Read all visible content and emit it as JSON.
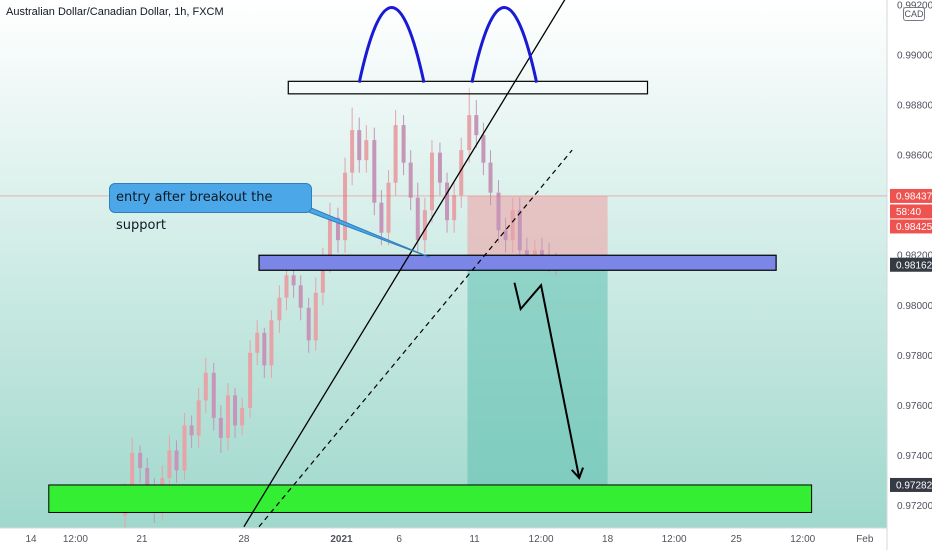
{
  "header": {
    "title": "Australian Dollar/Canadian Dollar, 1h, FXCM",
    "currency": "CAD"
  },
  "annotation": {
    "callout_text": "entry after breakout the support"
  },
  "colors": {
    "background_top": "#ffffff",
    "background_bottom": "#9fd8cc",
    "bull_candle": "#e6a3a8",
    "bear_candle": "#c596b8",
    "support_zone": "#7b86e6",
    "target_zone": "#33ee33",
    "risk_box": "#e8b4b4",
    "reward_box": "#5fbfb0",
    "callout": "#4ba7e8",
    "arch": "#1a1ad6",
    "price_tag_red": "#ef5350",
    "price_tag_dark": "#363a45"
  },
  "chart_data": {
    "type": "candlestick",
    "title": "Australian Dollar/Canadian Dollar, 1h, FXCM",
    "y_range": [
      0.9711,
      0.9922
    ],
    "x_range": [
      0,
      100
    ],
    "y_ticks": [
      {
        "label": "0.99200",
        "value": 0.992
      },
      {
        "label": "0.99000",
        "value": 0.99
      },
      {
        "label": "0.98800",
        "value": 0.988
      },
      {
        "label": "0.98600",
        "value": 0.986
      },
      {
        "label": "0.98200",
        "value": 0.982
      },
      {
        "label": "0.98000",
        "value": 0.98
      },
      {
        "label": "0.97800",
        "value": 0.978
      },
      {
        "label": "0.97600",
        "value": 0.976
      },
      {
        "label": "0.97400",
        "value": 0.974
      },
      {
        "label": "0.97200",
        "value": 0.972
      }
    ],
    "x_ticks": [
      {
        "label": "14",
        "x": 3.5,
        "bold": false
      },
      {
        "label": "12:00",
        "x": 8.5,
        "bold": false
      },
      {
        "label": "21",
        "x": 16,
        "bold": false
      },
      {
        "label": "28",
        "x": 27.5,
        "bold": false
      },
      {
        "label": "2021",
        "x": 38.5,
        "bold": true
      },
      {
        "label": "6",
        "x": 45,
        "bold": false
      },
      {
        "label": "11",
        "x": 53.5,
        "bold": false
      },
      {
        "label": "12:00",
        "x": 61,
        "bold": false
      },
      {
        "label": "18",
        "x": 68.5,
        "bold": false
      },
      {
        "label": "12:00",
        "x": 76,
        "bold": false
      },
      {
        "label": "25",
        "x": 83,
        "bold": false
      },
      {
        "label": "12:00",
        "x": 90.5,
        "bold": false
      },
      {
        "label": "Feb",
        "x": 97.5,
        "bold": false
      }
    ],
    "price_tags": [
      {
        "label": "0.98437",
        "value": 0.98437,
        "style": "red"
      },
      {
        "label": "58:40",
        "value": 0.98375,
        "style": "red"
      },
      {
        "label": "0.98425",
        "value": 0.98315,
        "style": "red"
      },
      {
        "label": "0.98162",
        "value": 0.98162,
        "style": "dark"
      },
      {
        "label": "0.97282",
        "value": 0.97282,
        "style": "dark"
      }
    ],
    "series": [
      {
        "x": [
          14.1,
          14.9,
          15.8,
          16.6,
          17.4,
          18.3,
          19.1,
          19.9,
          20.8,
          21.6,
          22.4,
          23.2,
          24.1,
          24.9,
          25.7,
          26.5,
          27.3,
          28.2,
          29.0,
          29.8,
          30.6,
          31.5,
          32.3,
          33.1,
          33.9,
          34.8,
          35.6,
          36.4,
          37.2,
          38.1,
          38.9,
          39.7,
          40.5,
          41.3,
          42.2,
          43.0,
          43.8,
          44.6,
          45.5,
          46.3,
          47.1,
          47.9,
          48.7,
          49.6,
          50.4,
          51.2,
          52.0,
          52.9,
          53.7,
          54.5,
          55.3,
          56.2,
          57.0,
          57.8,
          58.6,
          59.4,
          60.3,
          61.1,
          61.9,
          62.7
        ],
        "open": [
          0.9716,
          0.9724,
          0.9741,
          0.9735,
          0.9726,
          0.9719,
          0.9731,
          0.9742,
          0.9734,
          0.9752,
          0.9748,
          0.9762,
          0.9773,
          0.9755,
          0.9747,
          0.9764,
          0.9752,
          0.9759,
          0.9781,
          0.9789,
          0.9776,
          0.9794,
          0.9803,
          0.9812,
          0.9808,
          0.9799,
          0.9786,
          0.9805,
          0.9818,
          0.9835,
          0.9826,
          0.9853,
          0.987,
          0.9858,
          0.9866,
          0.9841,
          0.9829,
          0.9849,
          0.9872,
          0.9857,
          0.9843,
          0.9826,
          0.9838,
          0.9861,
          0.9849,
          0.9834,
          0.9844,
          0.9862,
          0.9876,
          0.9868,
          0.9857,
          0.9845,
          0.983,
          0.9826,
          0.9838,
          0.9822,
          0.9819,
          0.9822,
          0.982,
          0.9817
        ],
        "close": [
          0.9724,
          0.9741,
          0.9735,
          0.9726,
          0.9719,
          0.9731,
          0.9742,
          0.9734,
          0.9752,
          0.9748,
          0.9762,
          0.9773,
          0.9755,
          0.9747,
          0.9764,
          0.9752,
          0.9759,
          0.9781,
          0.9789,
          0.9776,
          0.9794,
          0.9803,
          0.9812,
          0.9808,
          0.9799,
          0.9786,
          0.9805,
          0.9818,
          0.9835,
          0.9826,
          0.9853,
          0.987,
          0.9858,
          0.9866,
          0.9841,
          0.9829,
          0.9849,
          0.9872,
          0.9857,
          0.9843,
          0.9826,
          0.9838,
          0.9861,
          0.9849,
          0.9834,
          0.9844,
          0.9862,
          0.9876,
          0.9868,
          0.9857,
          0.9845,
          0.983,
          0.9826,
          0.9838,
          0.9822,
          0.9819,
          0.9822,
          0.982,
          0.9817,
          0.9816
        ],
        "high": [
          0.9729,
          0.9747,
          0.9744,
          0.9739,
          0.9731,
          0.9736,
          0.9748,
          0.9746,
          0.9757,
          0.9756,
          0.9767,
          0.9779,
          0.9777,
          0.976,
          0.9769,
          0.9767,
          0.9763,
          0.9786,
          0.9794,
          0.9791,
          0.9798,
          0.9808,
          0.9818,
          0.9816,
          0.9812,
          0.9803,
          0.9811,
          0.9823,
          0.9841,
          0.9839,
          0.9859,
          0.9879,
          0.9875,
          0.9872,
          0.9871,
          0.9846,
          0.9854,
          0.9878,
          0.9876,
          0.9862,
          0.9849,
          0.9843,
          0.9866,
          0.9865,
          0.9853,
          0.9849,
          0.9867,
          0.9887,
          0.9882,
          0.9873,
          0.9862,
          0.985,
          0.9835,
          0.9843,
          0.9843,
          0.9827,
          0.9826,
          0.9827,
          0.9825,
          0.9821
        ],
        "low": [
          0.9711,
          0.9719,
          0.9729,
          0.9722,
          0.9713,
          0.9714,
          0.9726,
          0.9729,
          0.973,
          0.9743,
          0.9743,
          0.9757,
          0.975,
          0.9741,
          0.9742,
          0.9747,
          0.9748,
          0.9755,
          0.9776,
          0.9771,
          0.9771,
          0.9789,
          0.9798,
          0.9803,
          0.9794,
          0.9781,
          0.9782,
          0.98,
          0.9813,
          0.9821,
          0.9821,
          0.9848,
          0.9853,
          0.9853,
          0.9836,
          0.9824,
          0.9824,
          0.9844,
          0.9852,
          0.9838,
          0.9821,
          0.9821,
          0.9833,
          0.9844,
          0.9829,
          0.9829,
          0.9839,
          0.9857,
          0.9863,
          0.9852,
          0.984,
          0.9825,
          0.9821,
          0.9821,
          0.9817,
          0.9814,
          0.9814,
          0.9815,
          0.9813,
          0.9812
        ]
      }
    ],
    "drawings": {
      "resistance_box": {
        "x0": 32.5,
        "x1": 73.0,
        "y_top": 0.98895,
        "y_bottom": 0.98845
      },
      "support_zone": {
        "x0": 29.2,
        "x1": 87.5,
        "y_top": 0.982,
        "y_bottom": 0.9814
      },
      "target_zone": {
        "x0": 5.5,
        "x1": 91.5,
        "y_top": 0.97282,
        "y_bottom": 0.97172
      },
      "risk_box": {
        "x0": 52.7,
        "x1": 68.5,
        "y_top": 0.98437,
        "y_bottom": 0.98162
      },
      "reward_box": {
        "x0": 52.7,
        "x1": 68.5,
        "y_top": 0.98162,
        "y_bottom": 0.97282
      },
      "rising_trendline": {
        "x0": 27.5,
        "y0": 0.97115,
        "x1": 64.0,
        "y1": 0.9924
      },
      "dashed_trendline": {
        "x0": 29.2,
        "y0": 0.97115,
        "x1": 64.5,
        "y1": 0.9862
      },
      "arches": [
        {
          "x0": 40.5,
          "x1": 47.8,
          "y_base": 0.9889,
          "y_peak": 0.9919
        },
        {
          "x0": 53.2,
          "x1": 60.5,
          "y_base": 0.9889,
          "y_peak": 0.9919
        }
      ],
      "projection_arrow": [
        {
          "x": 58.0,
          "y": 0.9809
        },
        {
          "x": 58.7,
          "y": 0.97985
        },
        {
          "x": 61.0,
          "y": 0.9808
        },
        {
          "x": 65.3,
          "y": 0.9731
        }
      ]
    }
  }
}
